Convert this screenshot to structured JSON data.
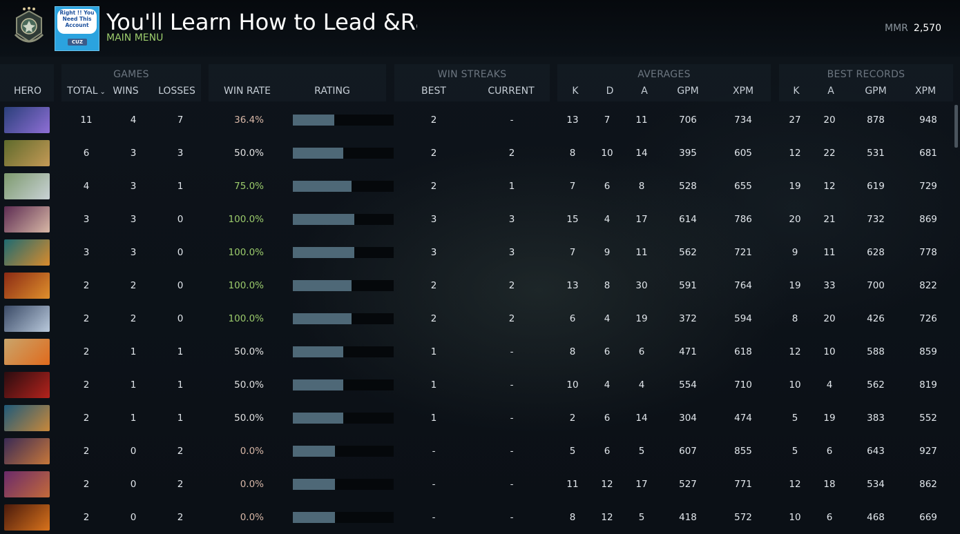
{
  "profile": {
    "account_name": "You'll Learn How to Lead &Ra",
    "main_menu_label": "MAIN MENU",
    "mmr_label": "MMR",
    "mmr_value": "2,570",
    "avatar_text": "Right !! You Need This Account",
    "avatar_tag": "CUZ"
  },
  "table": {
    "groups": {
      "games": "GAMES",
      "win_streaks": "WIN STREAKS",
      "averages": "AVERAGES",
      "best_records": "BEST RECORDS"
    },
    "columns": {
      "hero": "HERO",
      "total": "TOTAL",
      "wins": "WINS",
      "losses": "LOSSES",
      "win_rate": "WIN RATE",
      "rating": "RATING",
      "streak_best": "BEST",
      "streak_current": "CURRENT",
      "avg_k": "K",
      "avg_d": "D",
      "avg_a": "A",
      "avg_gpm": "GPM",
      "avg_xpm": "XPM",
      "best_k": "K",
      "best_a": "A",
      "best_gpm": "GPM",
      "best_xpm": "XPM"
    },
    "sort_indicator": "⌄",
    "rows": [
      {
        "portrait": "hero-portrait-arc-warden",
        "c1": "#2a3f7a",
        "c2": "#8f6fd6",
        "total": "11",
        "wins": "4",
        "losses": "7",
        "win_rate": "36.4%",
        "rating": 0.41,
        "best": "2",
        "current": "-",
        "k": "13",
        "d": "7",
        "a": "11",
        "gpm": "706",
        "xpm": "734",
        "bk": "27",
        "ba": "20",
        "bgpm": "878",
        "bxpm": "948"
      },
      {
        "portrait": "hero-portrait-earthshaker",
        "c1": "#5e6a2c",
        "c2": "#c59a56",
        "total": "6",
        "wins": "3",
        "losses": "3",
        "win_rate": "50.0%",
        "rating": 0.5,
        "best": "2",
        "current": "2",
        "k": "8",
        "d": "10",
        "a": "14",
        "gpm": "395",
        "xpm": "605",
        "bk": "12",
        "ba": "22",
        "bgpm": "531",
        "bxpm": "681"
      },
      {
        "portrait": "hero-portrait-juggernaut",
        "c1": "#7d9a6e",
        "c2": "#c9d2d6",
        "total": "4",
        "wins": "3",
        "losses": "1",
        "win_rate": "75.0%",
        "rating": 0.58,
        "best": "2",
        "current": "1",
        "k": "7",
        "d": "6",
        "a": "8",
        "gpm": "528",
        "xpm": "655",
        "bk": "19",
        "ba": "12",
        "bgpm": "619",
        "bxpm": "729"
      },
      {
        "portrait": "hero-portrait-invoker",
        "c1": "#5d2c52",
        "c2": "#d8b8a6",
        "total": "3",
        "wins": "3",
        "losses": "0",
        "win_rate": "100.0%",
        "rating": 0.61,
        "best": "3",
        "current": "3",
        "k": "15",
        "d": "4",
        "a": "17",
        "gpm": "614",
        "xpm": "786",
        "bk": "20",
        "ba": "21",
        "bgpm": "732",
        "bxpm": "869"
      },
      {
        "portrait": "hero-portrait-tusk",
        "c1": "#1e6b72",
        "c2": "#d98b2c",
        "total": "3",
        "wins": "3",
        "losses": "0",
        "win_rate": "100.0%",
        "rating": 0.61,
        "best": "3",
        "current": "3",
        "k": "7",
        "d": "9",
        "a": "11",
        "gpm": "562",
        "xpm": "721",
        "bk": "9",
        "ba": "11",
        "bgpm": "628",
        "bxpm": "778"
      },
      {
        "portrait": "hero-portrait-huskar",
        "c1": "#8a2a14",
        "c2": "#e0902c",
        "total": "2",
        "wins": "2",
        "losses": "0",
        "win_rate": "100.0%",
        "rating": 0.58,
        "best": "2",
        "current": "2",
        "k": "13",
        "d": "8",
        "a": "30",
        "gpm": "591",
        "xpm": "764",
        "bk": "19",
        "ba": "33",
        "bgpm": "700",
        "bxpm": "822"
      },
      {
        "portrait": "hero-portrait-mirana",
        "c1": "#3a4a66",
        "c2": "#b9c9dc",
        "total": "2",
        "wins": "2",
        "losses": "0",
        "win_rate": "100.0%",
        "rating": 0.58,
        "best": "2",
        "current": "2",
        "k": "6",
        "d": "4",
        "a": "19",
        "gpm": "372",
        "xpm": "594",
        "bk": "8",
        "ba": "20",
        "bgpm": "426",
        "bxpm": "726"
      },
      {
        "portrait": "hero-portrait-dawnbreaker",
        "c1": "#c9a56b",
        "c2": "#e06a1c",
        "total": "2",
        "wins": "1",
        "losses": "1",
        "win_rate": "50.0%",
        "rating": 0.5,
        "best": "1",
        "current": "-",
        "k": "8",
        "d": "6",
        "a": "6",
        "gpm": "471",
        "xpm": "618",
        "bk": "12",
        "ba": "10",
        "bgpm": "588",
        "bxpm": "859"
      },
      {
        "portrait": "hero-portrait-shadow-fiend",
        "c1": "#2a0c10",
        "c2": "#b4231c",
        "total": "2",
        "wins": "1",
        "losses": "1",
        "win_rate": "50.0%",
        "rating": 0.5,
        "best": "1",
        "current": "-",
        "k": "10",
        "d": "4",
        "a": "4",
        "gpm": "554",
        "xpm": "710",
        "bk": "10",
        "ba": "4",
        "bgpm": "562",
        "bxpm": "819"
      },
      {
        "portrait": "hero-portrait-sniper",
        "c1": "#1e5a7a",
        "c2": "#c9883a",
        "total": "2",
        "wins": "1",
        "losses": "1",
        "win_rate": "50.0%",
        "rating": 0.5,
        "best": "1",
        "current": "-",
        "k": "2",
        "d": "6",
        "a": "14",
        "gpm": "304",
        "xpm": "474",
        "bk": "5",
        "ba": "19",
        "bgpm": "383",
        "bxpm": "552"
      },
      {
        "portrait": "hero-portrait-anti-mage",
        "c1": "#3a2a55",
        "c2": "#c7773a",
        "total": "2",
        "wins": "0",
        "losses": "2",
        "win_rate": "0.0%",
        "rating": 0.42,
        "best": "-",
        "current": "-",
        "k": "5",
        "d": "6",
        "a": "5",
        "gpm": "607",
        "xpm": "855",
        "bk": "5",
        "ba": "6",
        "bgpm": "643",
        "bxpm": "927"
      },
      {
        "portrait": "hero-portrait-faceless-void",
        "c1": "#6a2a6a",
        "c2": "#c36a3a",
        "total": "2",
        "wins": "0",
        "losses": "2",
        "win_rate": "0.0%",
        "rating": 0.42,
        "best": "-",
        "current": "-",
        "k": "11",
        "d": "12",
        "a": "17",
        "gpm": "527",
        "xpm": "771",
        "bk": "12",
        "ba": "18",
        "bgpm": "534",
        "bxpm": "862"
      },
      {
        "portrait": "hero-portrait-bristleback",
        "c1": "#4a1a0c",
        "c2": "#d9731c",
        "total": "2",
        "wins": "0",
        "losses": "2",
        "win_rate": "0.0%",
        "rating": 0.42,
        "best": "-",
        "current": "-",
        "k": "8",
        "d": "12",
        "a": "5",
        "gpm": "418",
        "xpm": "572",
        "bk": "10",
        "ba": "6",
        "bgpm": "468",
        "bxpm": "669"
      }
    ]
  },
  "colors": {
    "win_rate_low": "#d9b8a8",
    "win_rate_mid": "#e2e2e2",
    "win_rate_high": "#9ccc6c",
    "rating_bar": "#4e6877"
  }
}
